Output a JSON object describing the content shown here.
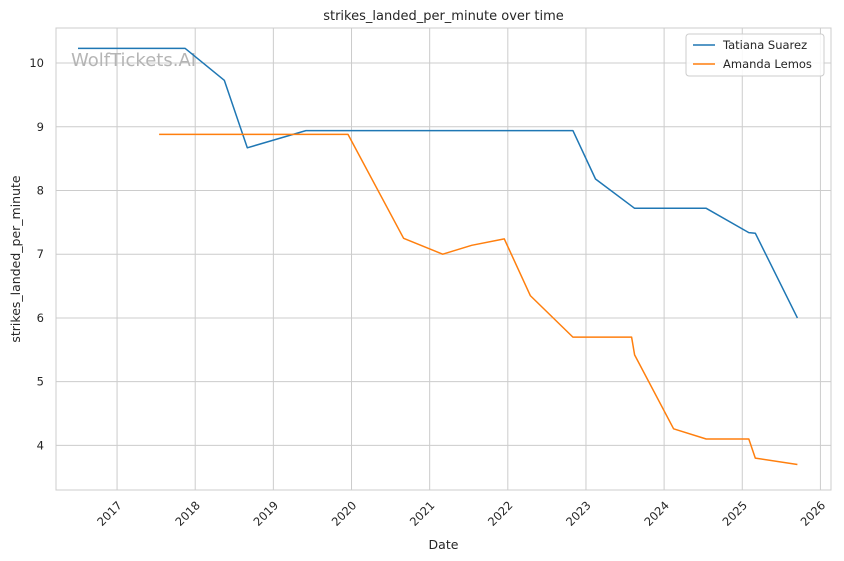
{
  "chart_data": {
    "type": "line",
    "title": "strikes_landed_per_minute over time",
    "xlabel": "Date",
    "ylabel": "strikes_landed_per_minute",
    "watermark": "WolfTickets.AI",
    "x_ticks": [
      "2017",
      "2018",
      "2019",
      "2020",
      "2021",
      "2022",
      "2023",
      "2024",
      "2025",
      "2026"
    ],
    "y_ticks": [
      "4",
      "5",
      "6",
      "7",
      "8",
      "9",
      "10"
    ],
    "xlim": [
      "2016-03-20",
      "2026-02-20"
    ],
    "ylim": [
      3.3,
      10.55
    ],
    "grid": true,
    "legend_position": "top-right",
    "series": [
      {
        "name": "Tatiana Suarez",
        "color": "#1f77b4",
        "points": [
          [
            "2016-07-01",
            10.23
          ],
          [
            "2017-11-15",
            10.23
          ],
          [
            "2018-05-15",
            9.73
          ],
          [
            "2018-09-01",
            8.67
          ],
          [
            "2019-06-01",
            8.94
          ],
          [
            "2022-11-01",
            8.94
          ],
          [
            "2023-02-15",
            8.18
          ],
          [
            "2023-08-15",
            7.72
          ],
          [
            "2024-07-15",
            7.72
          ],
          [
            "2025-02-01",
            7.34
          ],
          [
            "2025-03-01",
            7.33
          ],
          [
            "2025-09-15",
            6.0
          ]
        ]
      },
      {
        "name": "Amanda Lemos",
        "color": "#ff7f0e",
        "points": [
          [
            "2017-07-15",
            8.88
          ],
          [
            "2019-12-15",
            8.88
          ],
          [
            "2020-09-01",
            7.25
          ],
          [
            "2021-03-01",
            7.0
          ],
          [
            "2021-07-15",
            7.14
          ],
          [
            "2021-12-15",
            7.24
          ],
          [
            "2022-04-15",
            6.35
          ],
          [
            "2022-11-01",
            5.7
          ],
          [
            "2023-08-01",
            5.7
          ],
          [
            "2023-08-15",
            5.42
          ],
          [
            "2024-02-15",
            4.26
          ],
          [
            "2024-07-15",
            4.1
          ],
          [
            "2025-02-01",
            4.1
          ],
          [
            "2025-03-01",
            3.8
          ],
          [
            "2025-09-15",
            3.7
          ]
        ]
      }
    ]
  }
}
